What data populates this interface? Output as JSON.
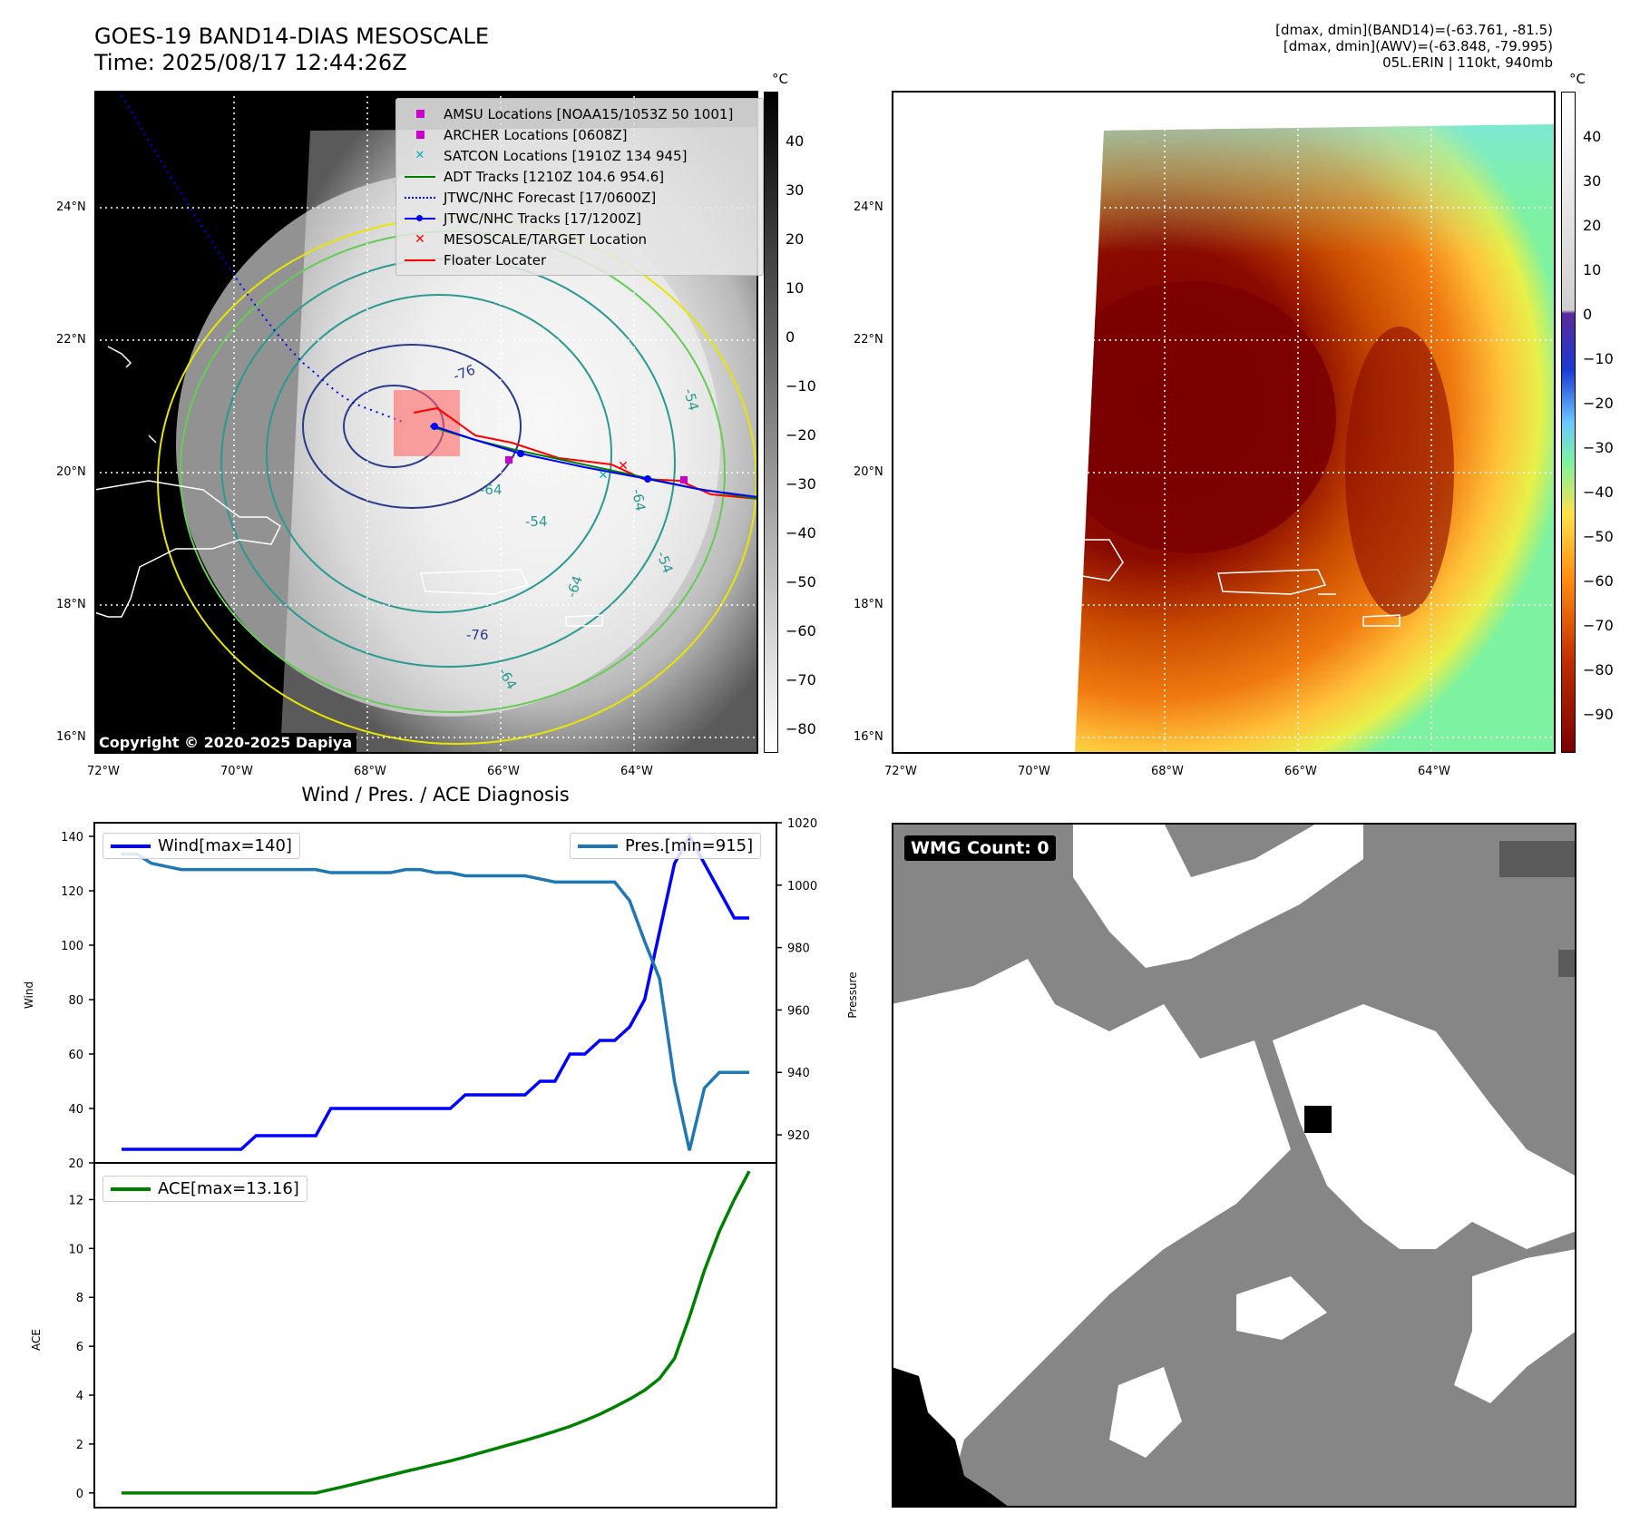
{
  "header": {
    "title_line1": "GOES-19 BAND14-DIAS MESOSCALE",
    "title_line2": "Time: 2025/08/17 12:44:26Z",
    "stats_line1": "[dmax, dmin](BAND14)=(-63.761, -81.5)",
    "stats_line2": "[dmax, dmin](AWV)=(-63.848, -79.995)",
    "stats_line3": "05L.ERIN | 110kt, 940mb"
  },
  "map": {
    "lon_ticks": [
      "72°W",
      "70°W",
      "68°W",
      "66°W",
      "64°W"
    ],
    "lat_ticks": [
      "24°N",
      "22°N",
      "20°N",
      "18°N",
      "16°N"
    ],
    "colorbar_unit": "°C",
    "left_colorbar_ticks": [
      "40",
      "30",
      "20",
      "10",
      "0",
      "−10",
      "−20",
      "−30",
      "−40",
      "−50",
      "−60",
      "−70",
      "−80"
    ],
    "right_colorbar_ticks": [
      "40",
      "30",
      "20",
      "10",
      "0",
      "−10",
      "−20",
      "−30",
      "−40",
      "−50",
      "−60",
      "−70",
      "−80",
      "−90"
    ],
    "contour_labels": [
      "-76",
      "-64",
      "-54",
      "-76",
      "-64",
      "-64",
      "-54",
      "-64",
      "-54"
    ],
    "copyright": "Copyright © 2020-2025 Dapiya",
    "legend": [
      {
        "label": "AMSU Locations [NOAA15/1053Z 50 1001]",
        "marker": "square",
        "color": "#cc00cc"
      },
      {
        "label": "ARCHER Locations [0608Z]",
        "marker": "square",
        "color": "#cc00cc"
      },
      {
        "label": "SATCON Locations [1910Z 134 945]",
        "marker": "x",
        "color": "#00b3b3"
      },
      {
        "label": "ADT Tracks [1210Z 104.6 954.6]",
        "marker": "line",
        "color": "#008000"
      },
      {
        "label": "JTWC/NHC Forecast [17/0600Z]",
        "marker": "dotted",
        "color": "#0000ff"
      },
      {
        "label": "JTWC/NHC Tracks [17/1200Z]",
        "marker": "line-dot",
        "color": "#0000ff"
      },
      {
        "label": "MESOSCALE/TARGET Location",
        "marker": "x",
        "color": "#ff0000"
      },
      {
        "label": "Floater Locater",
        "marker": "line",
        "color": "#ff0000"
      }
    ]
  },
  "diagnosis": {
    "title": "Wind / Pres. / ACE Diagnosis",
    "wind_legend": "Wind[max=140]",
    "pres_legend": "Pres.[min=915]",
    "ace_legend": "ACE[max=13.16]",
    "wind_ylabel": "Wind",
    "pres_ylabel": "Pressure",
    "ace_ylabel": "ACE",
    "wind_color": "#0000ff",
    "pres_color": "#1f77b4",
    "ace_color": "#008000"
  },
  "wmg": {
    "label": "WMG Count: 0"
  },
  "chart_data": [
    {
      "type": "line",
      "series": [
        {
          "name": "Wind[max=140]",
          "axis": "left",
          "values": [
            25,
            25,
            25,
            25,
            25,
            25,
            25,
            25,
            25,
            30,
            30,
            30,
            30,
            30,
            40,
            40,
            40,
            40,
            40,
            40,
            40,
            40,
            40,
            45,
            45,
            45,
            45,
            45,
            50,
            50,
            60,
            60,
            65,
            65,
            70,
            80,
            105,
            130,
            140,
            130,
            120,
            110,
            110
          ]
        },
        {
          "name": "Pres.[min=915]",
          "axis": "right",
          "values": [
            1010,
            1010,
            1007,
            1006,
            1005,
            1005,
            1005,
            1005,
            1005,
            1005,
            1005,
            1005,
            1005,
            1005,
            1004,
            1004,
            1004,
            1004,
            1004,
            1005,
            1005,
            1004,
            1004,
            1003,
            1003,
            1003,
            1003,
            1003,
            1002,
            1001,
            1001,
            1001,
            1001,
            1001,
            995,
            982,
            970,
            937,
            915,
            935,
            940,
            940,
            940
          ]
        }
      ],
      "ylim_left": [
        20,
        145
      ],
      "yticks_left": [
        20,
        40,
        60,
        80,
        100,
        120,
        140
      ],
      "ylim_right": [
        911,
        1020
      ],
      "yticks_right": [
        920,
        940,
        960,
        980,
        1000,
        1020
      ],
      "ylabel": "Wind",
      "ylabel_right": "Pressure"
    },
    {
      "type": "line",
      "series": [
        {
          "name": "ACE[max=13.16]",
          "values": [
            0,
            0,
            0,
            0,
            0,
            0,
            0,
            0,
            0,
            0,
            0,
            0,
            0,
            0,
            0.14,
            0.28,
            0.43,
            0.58,
            0.73,
            0.88,
            1.02,
            1.17,
            1.31,
            1.47,
            1.64,
            1.81,
            1.98,
            2.15,
            2.33,
            2.52,
            2.72,
            2.96,
            3.22,
            3.52,
            3.84,
            4.2,
            4.68,
            5.5,
            7.2,
            9.1,
            10.7,
            12.0,
            13.16
          ]
        }
      ],
      "ylim": [
        -0.6,
        13.5
      ],
      "yticks": [
        0,
        2,
        4,
        6,
        8,
        10,
        12
      ],
      "ylabel": "ACE"
    }
  ]
}
